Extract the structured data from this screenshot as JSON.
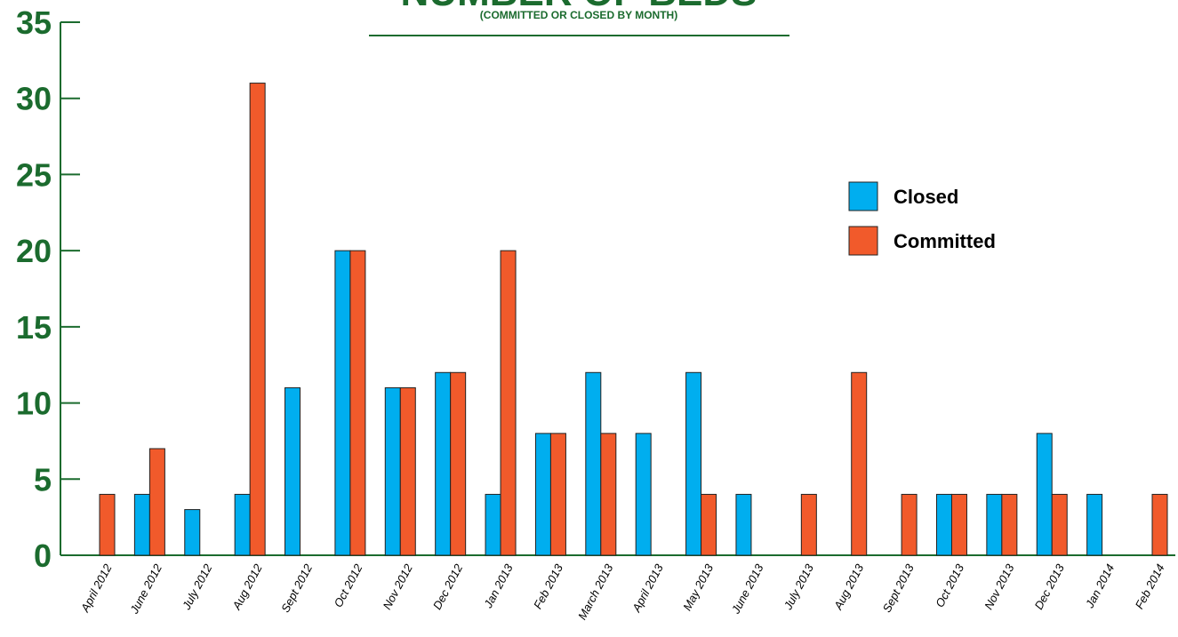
{
  "chart_data": {
    "type": "bar",
    "title": "NUMBER OF BEDS",
    "subtitle": "(COMMITTED OR CLOSED BY MONTH)",
    "xlabel": "",
    "ylabel": "",
    "ylim": [
      0,
      35
    ],
    "yticks": [
      "0",
      "5",
      "10",
      "15",
      "20",
      "25",
      "30",
      "35"
    ],
    "legend_position": "right",
    "categories": [
      "April 2012",
      "June 2012",
      "July 2012",
      "Aug 2012",
      "Sept 2012",
      "Oct 2012",
      "Nov 2012",
      "Dec 2012",
      "Jan 2013",
      "Feb 2013",
      "March 2013",
      "April 2013",
      "May 2013",
      "June 2013",
      "July 2013",
      "Aug 2013",
      "Sept 2013",
      "Oct 2013",
      "Nov 2013",
      "Dec 2013",
      "Jan 2014",
      "Feb 2014"
    ],
    "series": [
      {
        "name": "Closed",
        "color": "#00aeef",
        "values": [
          0,
          4,
          3,
          4,
          11,
          20,
          11,
          12,
          4,
          8,
          12,
          8,
          12,
          4,
          0,
          0,
          0,
          4,
          4,
          8,
          4,
          0
        ]
      },
      {
        "name": "Committed",
        "color": "#f15a2b",
        "values": [
          4,
          7,
          0,
          31,
          0,
          20,
          11,
          12,
          20,
          8,
          8,
          0,
          4,
          0,
          4,
          12,
          4,
          4,
          4,
          4,
          0,
          4
        ]
      }
    ],
    "colors": {
      "axis": "#1b6b2e",
      "title": "#1b6b2e",
      "text": "#000000",
      "bar_stroke": "#222222"
    }
  }
}
